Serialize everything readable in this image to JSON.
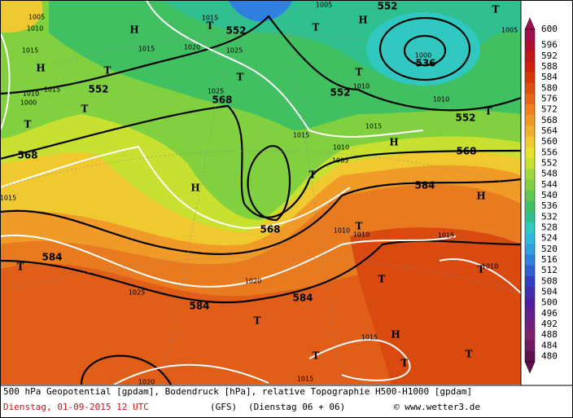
{
  "footer": {
    "title": "500 hPa Geopotential [gpdam], Bodendruck [hPa], relative Topographie H500-H1000 [gpdam]",
    "date": "Dienstag, 01-09-2015  12 UTC",
    "model": "(GFS)",
    "run": "(Dienstag 06 + 06)",
    "credit": "© www.wetter3.de"
  },
  "legend": {
    "levels": [
      600,
      596,
      592,
      588,
      584,
      580,
      576,
      572,
      568,
      564,
      560,
      556,
      552,
      548,
      544,
      540,
      536,
      532,
      528,
      524,
      520,
      516,
      512,
      508,
      504,
      500,
      496,
      492,
      488,
      484,
      480
    ],
    "colors": [
      "#a01050",
      "#b01030",
      "#c01818",
      "#d02010",
      "#d83808",
      "#e05010",
      "#e86818",
      "#f08020",
      "#f09828",
      "#f0b030",
      "#f0c830",
      "#e8e030",
      "#c8e030",
      "#a0d840",
      "#80d040",
      "#60c850",
      "#40c060",
      "#30c090",
      "#30c8c0",
      "#30b8e0",
      "#30a0e0",
      "#3080e0",
      "#3060d0",
      "#3040c0",
      "#4030b0",
      "#5020a0",
      "#602090",
      "#702080",
      "#802070",
      "#701860",
      "#601050"
    ]
  },
  "contour_labels": [
    "552",
    "552",
    "552",
    "552",
    "552",
    "536",
    "568",
    "568",
    "568",
    "568",
    "584",
    "584",
    "584",
    "584"
  ],
  "markers": [
    "T",
    "T",
    "T",
    "T",
    "T",
    "T",
    "T",
    "T",
    "T",
    "T",
    "T",
    "T",
    "T",
    "T",
    "T",
    "T",
    "T",
    "T",
    "H",
    "H",
    "H",
    "H",
    "H",
    "H",
    "H"
  ],
  "pressure_labels": [
    "1015",
    "1020",
    "1025",
    "1015",
    "1010",
    "1015",
    "1015",
    "1010",
    "1005",
    "1010",
    "1015",
    "1010",
    "1010",
    "1025",
    "1020",
    "1015",
    "1015",
    "1020",
    "1010",
    "1005",
    "1000",
    "1005",
    "1005",
    "1010",
    "1015",
    "1015",
    "1010",
    "1000",
    "1015",
    "1025"
  ]
}
